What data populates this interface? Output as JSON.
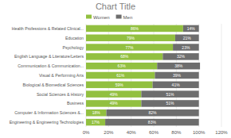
{
  "chart_data": {
    "type": "bar",
    "orientation": "horizontal",
    "stacked": true,
    "title": "Chart Title",
    "categories": [
      "Health Professions & Related Clinical...",
      "Education",
      "Psychology",
      "English Language & Literature/Letters",
      "Communication & Communication...",
      "Visual & Performing Arts",
      "Biological & Biomedical Sciences",
      "Social Sciences & History",
      "Business",
      "Computer & Information Sciences &...",
      "Engineering & Engineering Technologies"
    ],
    "series": [
      {
        "name": "Women",
        "color": "#92c040",
        "values": [
          86,
          79,
          77,
          68,
          63,
          61,
          59,
          49,
          49,
          18,
          17
        ],
        "value_labels": [
          "86%",
          "79%",
          "77%",
          "68%",
          "63%",
          "61%",
          "59%",
          "49%",
          "49%",
          "18%",
          "17%"
        ]
      },
      {
        "name": "Men",
        "color": "#6d6d6d",
        "values": [
          14,
          21,
          23,
          32,
          38,
          39,
          41,
          51,
          51,
          82,
          83
        ],
        "value_labels": [
          "14%",
          "21%",
          "23%",
          "32%",
          "38%",
          "39%",
          "41%",
          "51%",
          "51%",
          "82%",
          "83%"
        ]
      }
    ],
    "xlim": [
      0,
      120
    ],
    "xticks": [
      {
        "value": 0,
        "label": "0%"
      },
      {
        "value": 20,
        "label": "20%"
      },
      {
        "value": 40,
        "label": "40%"
      },
      {
        "value": 60,
        "label": "60%"
      },
      {
        "value": 80,
        "label": "80%"
      },
      {
        "value": 100,
        "label": "100%"
      },
      {
        "value": 120,
        "label": "120%"
      }
    ],
    "grid": true,
    "legend": "top",
    "data_labels": true
  }
}
